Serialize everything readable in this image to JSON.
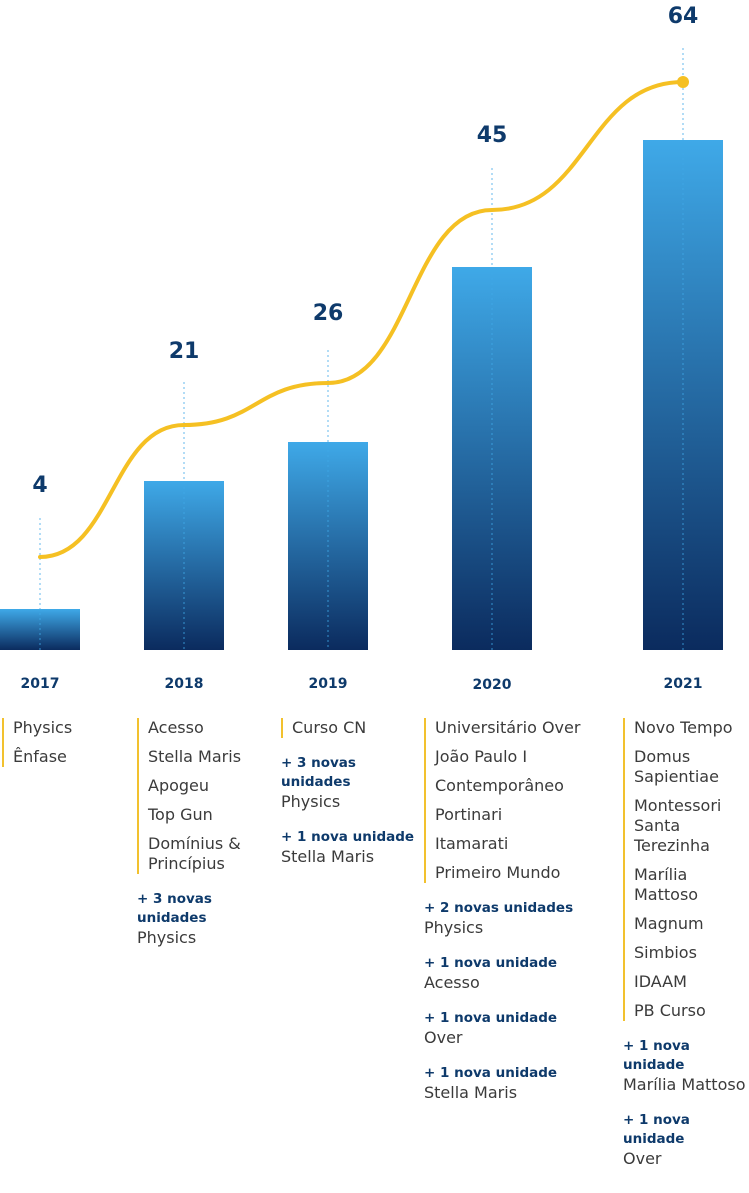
{
  "chart_data": {
    "type": "bar",
    "categories": [
      "2017",
      "2018",
      "2019",
      "2020",
      "2021"
    ],
    "values": [
      4,
      21,
      26,
      45,
      64
    ],
    "trend_line": true,
    "ylim": [
      0,
      64
    ],
    "colors": {
      "bar_top": "#3fa9e8",
      "bar_bottom": "#0b2b5e",
      "line": "#f5c023",
      "value_label": "#0e3a6b",
      "guide": "#3fa9e8"
    }
  },
  "columns": [
    {
      "year": "2017",
      "names": [
        "Physics",
        "Ênfase"
      ],
      "additions": []
    },
    {
      "year": "2018",
      "names": [
        "Acesso",
        "Stella Maris",
        "Apogeu",
        "Top Gun",
        "Domínius & Princípius"
      ],
      "additions": [
        {
          "heading": "+ 3 novas unidades",
          "name": "Physics"
        }
      ]
    },
    {
      "year": "2019",
      "names": [
        "Curso CN"
      ],
      "additions": [
        {
          "heading": "+ 3 novas unidades",
          "name": "Physics"
        },
        {
          "heading": "+ 1 nova unidade",
          "name": "Stella Maris"
        }
      ]
    },
    {
      "year": "2020",
      "names": [
        "Universitário Over",
        "João Paulo I",
        "Contemporâneo",
        "Portinari",
        "Itamarati",
        "Primeiro Mundo"
      ],
      "additions": [
        {
          "heading": "+ 2 novas unidades",
          "name": "Physics"
        },
        {
          "heading": "+ 1 nova unidade",
          "name": "Acesso"
        },
        {
          "heading": "+ 1 nova unidade",
          "name": "Over"
        },
        {
          "heading": "+ 1 nova unidade",
          "name": "Stella Maris"
        }
      ]
    },
    {
      "year": "2021",
      "names": [
        "Novo Tempo",
        "Domus Sapientiae",
        "Montessori Santa Terezinha",
        "Marília Mattoso",
        "Magnum",
        "Simbios",
        "IDAAM",
        "PB Curso"
      ],
      "additions": [
        {
          "heading": "+ 1 nova unidade",
          "name": "Marília Mattoso"
        },
        {
          "heading": "+ 1 nova unidade",
          "name": "Over"
        }
      ]
    }
  ]
}
